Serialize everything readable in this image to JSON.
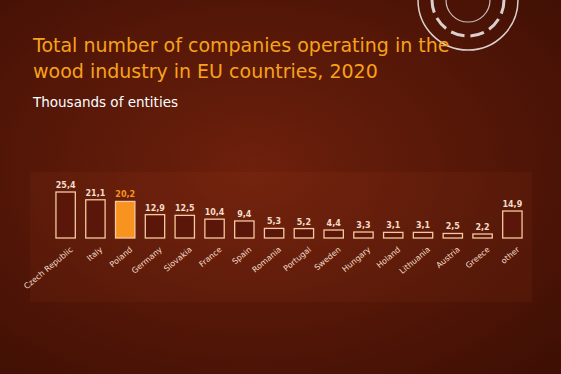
{
  "chart_data": {
    "type": "bar",
    "title": "Total number of companies operating in the wood industry in EU countries, 2020",
    "subtitle": "Thousands of entities",
    "categories": [
      "Czech Republic",
      "Italy",
      "Poland",
      "Germany",
      "Slovakia",
      "France",
      "Spain",
      "Romania",
      "Portugal",
      "Sweden",
      "Hungary",
      "Holand",
      "Lithuania",
      "Austria",
      "Greece",
      "other"
    ],
    "values": [
      25.4,
      21.1,
      20.2,
      12.9,
      12.5,
      10.4,
      9.4,
      5.3,
      5.2,
      4.4,
      3.3,
      3.1,
      3.1,
      2.5,
      2.2,
      14.9
    ],
    "value_labels": [
      "25,4",
      "21,1",
      "20,2",
      "12,9",
      "12,5",
      "10,4",
      "9,4",
      "5,3",
      "5,2",
      "4,4",
      "3,3",
      "3,1",
      "3,1",
      "2,5",
      "2,2",
      "14,9"
    ],
    "colors": [
      "#5a1709",
      "#5a1709",
      "#f7931e",
      "#5a1709",
      "#5a1709",
      "#5a1709",
      "#5a1709",
      "#5a1709",
      "#5a1709",
      "#5a1709",
      "#5a1709",
      "#5a1709",
      "#5a1709",
      "#5a1709",
      "#5a1709",
      "#5a1709"
    ],
    "data_labels": true,
    "tick_labels": false,
    "grid": false
  }
}
